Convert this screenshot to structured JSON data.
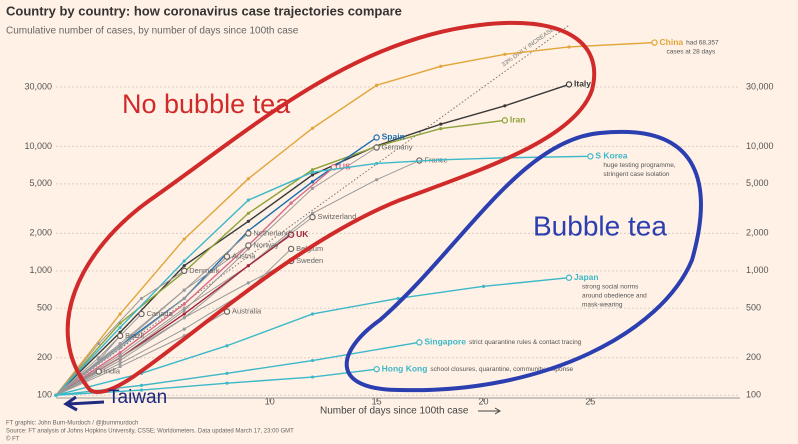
{
  "chart_data": {
    "type": "line",
    "title": "Country by country: how coronavirus case trajectories compare",
    "subtitle": "Cumulative number of cases, by number of days since 100th case",
    "x_label": "Number of days since 100th case",
    "log_y": true,
    "grid": true,
    "xlim": [
      0,
      32
    ],
    "ylim": [
      95,
      100000
    ],
    "xticks": [
      10,
      15,
      20,
      25
    ],
    "yticks": [
      100,
      200,
      500,
      {
        "value": 1000,
        "label": "1,000"
      },
      {
        "value": 2000,
        "label": "2,000"
      },
      {
        "value": 5000,
        "label": "5,000"
      },
      {
        "value": 10000,
        "label": "10,000"
      },
      {
        "value": 30000,
        "label": "30,000"
      }
    ],
    "reference": {
      "label": "33% DAILY INCREASE",
      "color": "#777777",
      "x": [
        0,
        24
      ],
      "values": [
        100,
        94200
      ]
    },
    "series": [
      {
        "name": "China",
        "color": "#e1a53a",
        "x": [
          0,
          3,
          6,
          9,
          12,
          15,
          18,
          21,
          24,
          28
        ],
        "values": [
          100,
          450,
          1800,
          5500,
          14000,
          31000,
          44000,
          55000,
          63000,
          68357
        ],
        "note": [
          "had 68,357",
          "cases at 28 days"
        ],
        "note_inline": true
      },
      {
        "name": "Italy",
        "color": "#3a3a3a",
        "x": [
          0,
          3,
          6,
          9,
          12,
          15,
          18,
          21,
          24
        ],
        "values": [
          100,
          320,
          1100,
          2500,
          5900,
          10100,
          15100,
          21200,
          31506
        ]
      },
      {
        "name": "Iran",
        "color": "#8ea33a",
        "x": [
          0,
          3,
          6,
          9,
          12,
          15,
          18,
          21
        ],
        "values": [
          100,
          380,
          980,
          2900,
          6500,
          10000,
          13900,
          16200
        ]
      },
      {
        "name": "Spain",
        "color": "#1e6fb0",
        "x": [
          0,
          3,
          6,
          9,
          12,
          15
        ],
        "values": [
          100,
          250,
          600,
          2100,
          5200,
          11800
        ]
      },
      {
        "name": "Germany",
        "color": "#9a9a9a",
        "x": [
          0,
          3,
          6,
          9,
          12,
          15
        ],
        "values": [
          100,
          200,
          480,
          1500,
          4600,
          9800
        ]
      },
      {
        "name": "France",
        "color": "#9a9a9a",
        "x": [
          0,
          3,
          6,
          9,
          12,
          15,
          17
        ],
        "values": [
          100,
          190,
          420,
          1100,
          2900,
          5400,
          7700
        ]
      },
      {
        "name": "US",
        "color": "#d96a86",
        "x": [
          0,
          3,
          6,
          9,
          11,
          13
        ],
        "values": [
          100,
          220,
          540,
          1600,
          3500,
          6800
        ]
      },
      {
        "name": "S Korea",
        "color": "#3cb8c9",
        "x": [
          0,
          3,
          6,
          9,
          12,
          15,
          18,
          21,
          25
        ],
        "values": [
          100,
          350,
          1200,
          3700,
          6200,
          7300,
          7800,
          8100,
          8320
        ],
        "note": [
          "huge testing programme,",
          "stringent case isolation"
        ],
        "note_inline": false
      },
      {
        "name": "Switzerland",
        "color": "#9a9a9a",
        "x": [
          0,
          3,
          6,
          9,
          12
        ],
        "values": [
          100,
          210,
          500,
          1100,
          2700
        ]
      },
      {
        "name": "UK",
        "color": "#a3243b",
        "x": [
          0,
          3,
          6,
          9,
          11
        ],
        "values": [
          100,
          200,
          450,
          1100,
          1950
        ]
      },
      {
        "name": "Netherlands",
        "color": "#9a9a9a",
        "x": [
          0,
          3,
          6,
          9
        ],
        "values": [
          100,
          260,
          700,
          2000
        ]
      },
      {
        "name": "Norway",
        "color": "#9a9a9a",
        "x": [
          0,
          3,
          6,
          9
        ],
        "values": [
          100,
          250,
          700,
          1600
        ]
      },
      {
        "name": "Austria",
        "color": "#9a9a9a",
        "x": [
          0,
          3,
          6,
          8
        ],
        "values": [
          100,
          240,
          600,
          1300
        ]
      },
      {
        "name": "Belgium",
        "color": "#9a9a9a",
        "x": [
          0,
          3,
          6,
          9,
          11
        ],
        "values": [
          100,
          180,
          340,
          700,
          1500
        ]
      },
      {
        "name": "Sweden",
        "color": "#9a9a9a",
        "x": [
          0,
          3,
          6,
          9,
          11
        ],
        "values": [
          100,
          200,
          420,
          800,
          1200
        ]
      },
      {
        "name": "Denmark",
        "color": "#9a9a9a",
        "x": [
          0,
          2,
          4,
          6
        ],
        "values": [
          100,
          260,
          600,
          1000
        ]
      },
      {
        "name": "Australia",
        "color": "#9a9a9a",
        "x": [
          0,
          3,
          6,
          8
        ],
        "values": [
          100,
          170,
          300,
          470
        ]
      },
      {
        "name": "Canada",
        "color": "#9a9a9a",
        "x": [
          0,
          2,
          4
        ],
        "values": [
          100,
          200,
          450
        ]
      },
      {
        "name": "Brazil",
        "color": "#9a9a9a",
        "x": [
          0,
          2,
          3
        ],
        "values": [
          100,
          190,
          300
        ]
      },
      {
        "name": "India",
        "color": "#9a9a9a",
        "x": [
          0,
          1,
          2
        ],
        "values": [
          100,
          125,
          155
        ]
      },
      {
        "name": "Japan",
        "color": "#3cb8c9",
        "x": [
          0,
          4,
          8,
          12,
          16,
          20,
          24
        ],
        "values": [
          100,
          150,
          250,
          450,
          600,
          750,
          880
        ],
        "note": [
          "strong social norms",
          "around obedience and",
          "mask-wearing"
        ],
        "note_inline": false
      },
      {
        "name": "Singapore",
        "color": "#3cb8c9",
        "x": [
          0,
          4,
          8,
          12,
          17
        ],
        "values": [
          100,
          120,
          150,
          190,
          266
        ],
        "note": [
          "strict quarantine rules & contact tracing"
        ],
        "note_inline": true
      },
      {
        "name": "Hong Kong",
        "color": "#3cb8c9",
        "x": [
          0,
          4,
          8,
          12,
          15
        ],
        "values": [
          100,
          110,
          125,
          140,
          162
        ],
        "note": [
          "school closures, quarantine, community response"
        ],
        "note_inline": true
      }
    ],
    "annotations": {
      "no_bubble_tea": "No bubble tea",
      "bubble_tea": "Bubble tea",
      "taiwan": "Taiwan"
    },
    "footer": [
      "FT graphic: John Burn-Murdoch / @jburnmurdoch",
      "Source: FT analysis of Johns Hopkins University, CSSE; Worldometers. Data updated March 17, 23:00 GMT",
      "© FT"
    ]
  }
}
